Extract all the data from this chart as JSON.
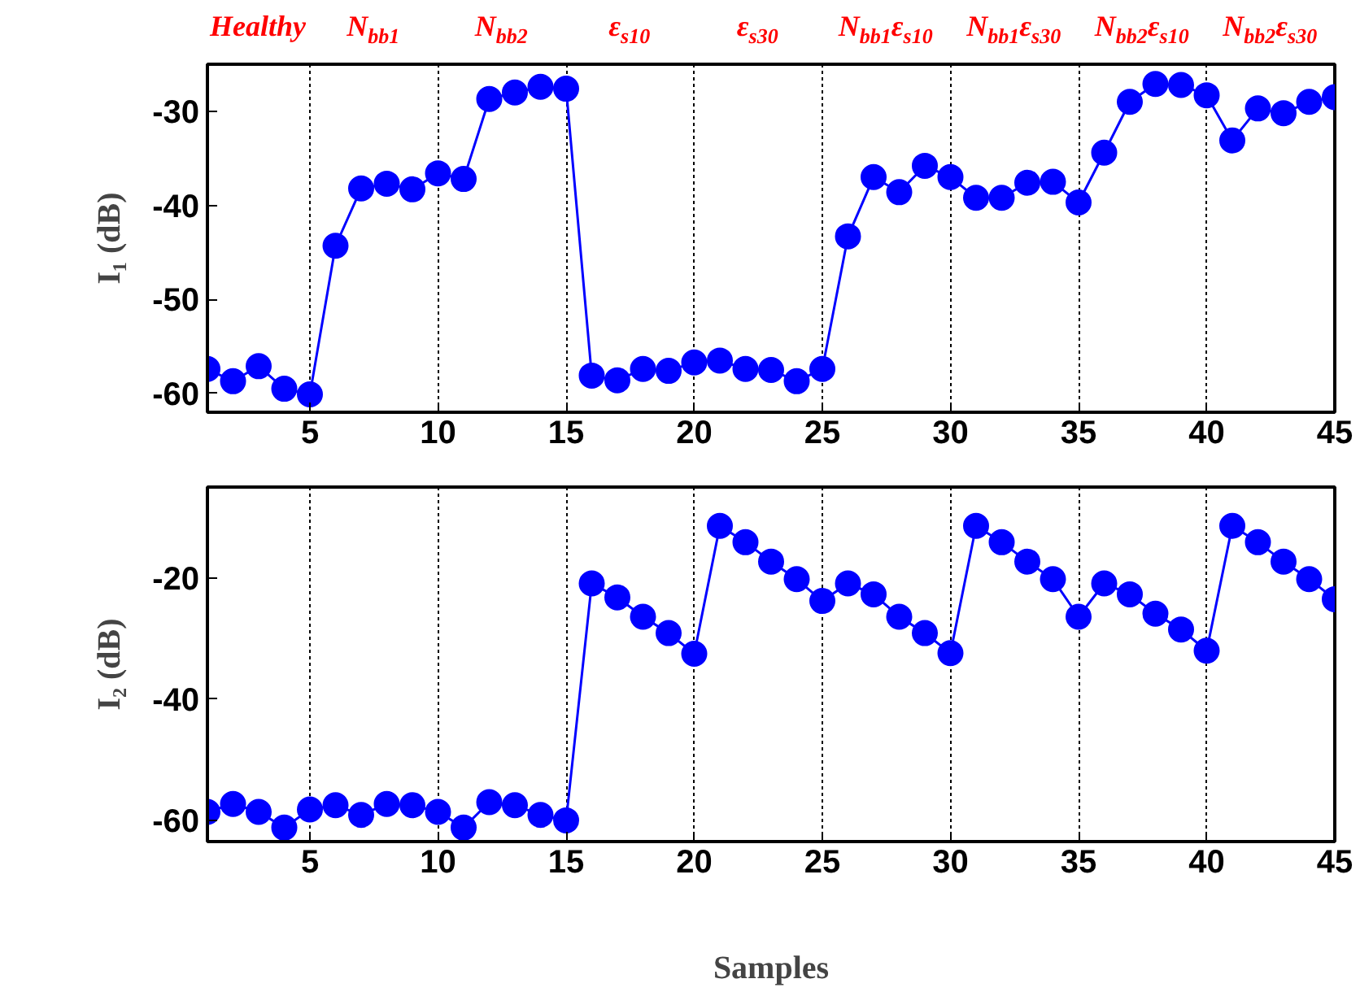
{
  "chart_data": [
    {
      "type": "line",
      "ylabel": "I₁ (dB)",
      "color": "#0000ff",
      "marker": "circle",
      "grid": "x",
      "annotations": [
        "Healthy",
        "N$_{bb1}$",
        "N$_{bb2}$",
        "ε$_{s10}$",
        "ε$_{s30}$",
        "N$_{bb1}$ε$_{s10}$",
        "N$_{bb1}$ε$_{s30}$",
        "N$_{bb2}$ε$_{s10}$",
        "N$_{bb2}$ε$_{s30}$"
      ],
      "x": [
        1,
        2,
        3,
        4,
        5,
        6,
        7,
        8,
        9,
        10,
        11,
        12,
        13,
        14,
        15,
        16,
        17,
        18,
        19,
        20,
        21,
        22,
        23,
        24,
        25,
        26,
        27,
        28,
        29,
        30,
        31,
        32,
        33,
        34,
        35,
        36,
        37,
        38,
        39,
        40,
        41,
        42,
        43,
        44,
        45
      ],
      "values": [
        -57.4,
        -58.7,
        -57.1,
        -59.5,
        -60.1,
        -44.3,
        -38.2,
        -37.7,
        -38.3,
        -36.6,
        -37.2,
        -28.7,
        -28.0,
        -27.4,
        -27.6,
        -58.1,
        -58.6,
        -57.4,
        -57.6,
        -56.7,
        -56.5,
        -57.4,
        -57.5,
        -58.7,
        -57.4,
        -43.3,
        -37.0,
        -38.6,
        -35.8,
        -37.0,
        -39.2,
        -39.2,
        -37.6,
        -37.5,
        -39.7,
        -34.4,
        -29.0,
        -27.1,
        -27.2,
        -28.3,
        -33.1,
        -29.7,
        -30.2,
        -29.0,
        -28.5
      ],
      "xlim": [
        1,
        45
      ],
      "ylim": [
        -62,
        -25
      ],
      "xticks": [
        5,
        10,
        15,
        20,
        25,
        30,
        35,
        40,
        45
      ],
      "yticks": [
        -30,
        -40,
        -50,
        -60
      ]
    },
    {
      "type": "line",
      "ylabel": "I₂ (dB)",
      "xlabel": "Samples",
      "color": "#0000ff",
      "marker": "circle",
      "grid": "x",
      "x": [
        1,
        2,
        3,
        4,
        5,
        6,
        7,
        8,
        9,
        10,
        11,
        12,
        13,
        14,
        15,
        16,
        17,
        18,
        19,
        20,
        21,
        22,
        23,
        24,
        25,
        26,
        27,
        28,
        29,
        30,
        31,
        32,
        33,
        34,
        35,
        36,
        37,
        38,
        39,
        40,
        41,
        42,
        43,
        44,
        45
      ],
      "values": [
        -58.6,
        -57.3,
        -58.6,
        -61.2,
        -58.2,
        -57.5,
        -59.1,
        -57.3,
        -57.5,
        -58.6,
        -61.2,
        -57.0,
        -57.5,
        -59.1,
        -60.0,
        -20.9,
        -23.2,
        -26.4,
        -29.1,
        -32.5,
        -11.4,
        -14.1,
        -17.3,
        -20.2,
        -23.8,
        -20.9,
        -22.7,
        -26.4,
        -29.1,
        -32.4,
        -11.4,
        -14.1,
        -17.3,
        -20.2,
        -26.4,
        -20.9,
        -22.7,
        -25.9,
        -28.5,
        -32.0,
        -11.4,
        -14.1,
        -17.3,
        -20.2,
        -23.5
      ],
      "xlim": [
        1,
        45
      ],
      "ylim": [
        -63.5,
        -5
      ],
      "xticks": [
        5,
        10,
        15,
        20,
        25,
        30,
        35,
        40,
        45
      ],
      "yticks": [
        -20,
        -40,
        -60
      ]
    }
  ]
}
